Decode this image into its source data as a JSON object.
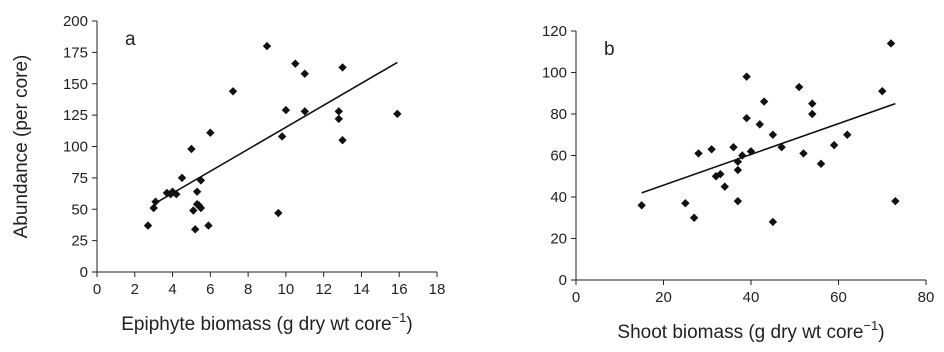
{
  "chart_data": [
    {
      "type": "scatter",
      "panel_label": "a",
      "xlabel": "Epiphyte biomass (g dry wt core",
      "xlabel_sup": "−1",
      "xlabel_close": ")",
      "ylabel": "Abundance (per core)",
      "xlim": [
        0,
        18
      ],
      "ylim": [
        0,
        200
      ],
      "xticks": [
        0,
        2,
        4,
        6,
        8,
        10,
        12,
        14,
        16,
        18
      ],
      "yticks": [
        0,
        25,
        50,
        75,
        100,
        125,
        150,
        175,
        200
      ],
      "grid": false,
      "legend": "none",
      "marker": "diamond",
      "color": "#111111",
      "points": [
        [
          2.7,
          37
        ],
        [
          3.0,
          51
        ],
        [
          3.1,
          56
        ],
        [
          3.7,
          63
        ],
        [
          3.9,
          62
        ],
        [
          4.0,
          64
        ],
        [
          4.2,
          62
        ],
        [
          4.5,
          75
        ],
        [
          5.0,
          98
        ],
        [
          5.1,
          49
        ],
        [
          5.2,
          34
        ],
        [
          5.3,
          64
        ],
        [
          5.3,
          54
        ],
        [
          5.4,
          53
        ],
        [
          5.5,
          51
        ],
        [
          5.5,
          73
        ],
        [
          5.9,
          37
        ],
        [
          6.0,
          111
        ],
        [
          7.2,
          144
        ],
        [
          9.0,
          180
        ],
        [
          9.6,
          47
        ],
        [
          9.8,
          108
        ],
        [
          10.0,
          129
        ],
        [
          10.5,
          166
        ],
        [
          11.0,
          128
        ],
        [
          11.0,
          158
        ],
        [
          12.8,
          128
        ],
        [
          12.8,
          122
        ],
        [
          13.0,
          163
        ],
        [
          13.0,
          105
        ],
        [
          15.9,
          126
        ]
      ],
      "trendline": {
        "x": [
          3.0,
          15.9
        ],
        "y": [
          54,
          167
        ]
      }
    },
    {
      "type": "scatter",
      "panel_label": "b",
      "xlabel": "Shoot biomass (g dry wt core",
      "xlabel_sup": "−1",
      "xlabel_close": ")",
      "ylabel": "",
      "xlim": [
        0,
        80
      ],
      "ylim": [
        0,
        120
      ],
      "xticks": [
        0,
        20,
        40,
        60,
        80
      ],
      "yticks": [
        0,
        20,
        40,
        60,
        80,
        100,
        120
      ],
      "grid": false,
      "legend": "none",
      "marker": "diamond",
      "color": "#111111",
      "points": [
        [
          15,
          36
        ],
        [
          25,
          37
        ],
        [
          27,
          30
        ],
        [
          28,
          61
        ],
        [
          31,
          63
        ],
        [
          32,
          50
        ],
        [
          33,
          51
        ],
        [
          34,
          45
        ],
        [
          36,
          64
        ],
        [
          37,
          53
        ],
        [
          37,
          57
        ],
        [
          37,
          38
        ],
        [
          38,
          60
        ],
        [
          39,
          78
        ],
        [
          39,
          98
        ],
        [
          40,
          62
        ],
        [
          42,
          75
        ],
        [
          43,
          86
        ],
        [
          45,
          70
        ],
        [
          45,
          28
        ],
        [
          47,
          64
        ],
        [
          51,
          93
        ],
        [
          52,
          61
        ],
        [
          54,
          85
        ],
        [
          54,
          80
        ],
        [
          56,
          56
        ],
        [
          59,
          65
        ],
        [
          62,
          70
        ],
        [
          70,
          91
        ],
        [
          72,
          114
        ],
        [
          73,
          38
        ]
      ],
      "trendline": {
        "x": [
          15,
          73
        ],
        "y": [
          42,
          85
        ]
      }
    }
  ]
}
